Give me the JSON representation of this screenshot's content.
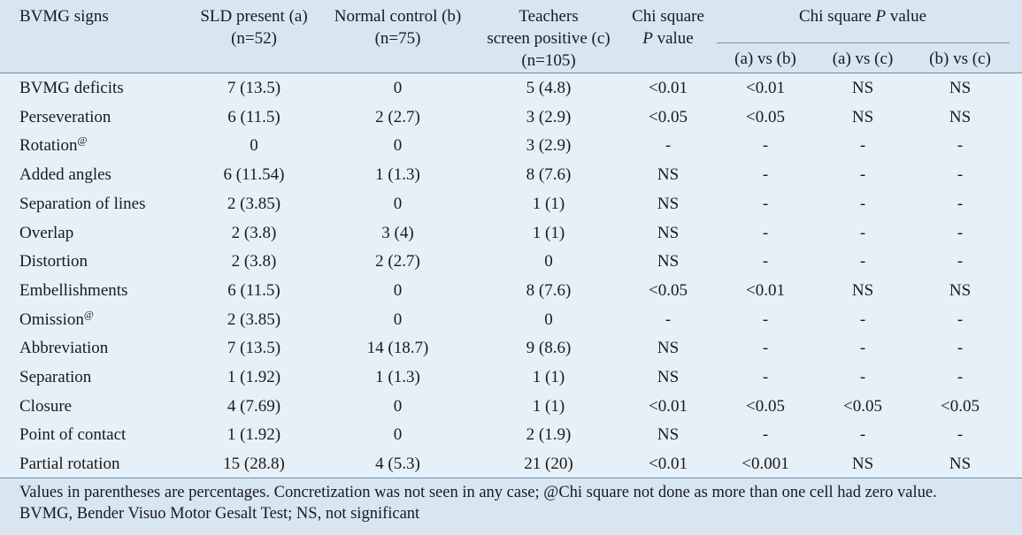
{
  "table": {
    "headers": {
      "signs": "BVMG signs",
      "sld_line1": "SLD present (a)",
      "sld_line2": "(n=52)",
      "normal_line1": "Normal control (b)",
      "normal_line2": "(n=75)",
      "teachers_line1": "Teachers",
      "teachers_line2": "screen positive (c)",
      "teachers_line3": "(n=105)",
      "chi_line1": "Chi square",
      "chi_line2_italic": "P",
      "chi_line2_rest": " value",
      "chip_group_pre": "Chi square ",
      "chip_group_italic": "P",
      "chip_group_post": " value",
      "ab": "(a) vs (b)",
      "ac": "(a) vs (c)",
      "bc": "(b) vs (c)"
    },
    "rows": [
      {
        "sign": "BVMG deficits",
        "sup": "",
        "a": "7 (13.5)",
        "b": "0",
        "c": "5 (4.8)",
        "chi": "<0.01",
        "ab": "<0.01",
        "ac": "NS",
        "bc": "NS"
      },
      {
        "sign": "Perseveration",
        "sup": "",
        "a": "6 (11.5)",
        "b": "2 (2.7)",
        "c": "3 (2.9)",
        "chi": "<0.05",
        "ab": "<0.05",
        "ac": "NS",
        "bc": "NS"
      },
      {
        "sign": "Rotation",
        "sup": "@",
        "a": "0",
        "b": "0",
        "c": "3 (2.9)",
        "chi": "-",
        "ab": "-",
        "ac": "-",
        "bc": "-"
      },
      {
        "sign": "Added angles",
        "sup": "",
        "a": "6 (11.54)",
        "b": "1 (1.3)",
        "c": "8 (7.6)",
        "chi": "NS",
        "ab": "-",
        "ac": "-",
        "bc": "-"
      },
      {
        "sign": "Separation of lines",
        "sup": "",
        "a": "2 (3.85)",
        "b": "0",
        "c": "1 (1)",
        "chi": "NS",
        "ab": "-",
        "ac": "-",
        "bc": "-"
      },
      {
        "sign": "Overlap",
        "sup": "",
        "a": "2 (3.8)",
        "b": "3 (4)",
        "c": "1 (1)",
        "chi": "NS",
        "ab": "-",
        "ac": "-",
        "bc": "-"
      },
      {
        "sign": "Distortion",
        "sup": "",
        "a": "2 (3.8)",
        "b": "2 (2.7)",
        "c": "0",
        "chi": "NS",
        "ab": "-",
        "ac": "-",
        "bc": "-"
      },
      {
        "sign": "Embellishments",
        "sup": "",
        "a": "6 (11.5)",
        "b": "0",
        "c": "8 (7.6)",
        "chi": "<0.05",
        "ab": "<0.01",
        "ac": "NS",
        "bc": "NS"
      },
      {
        "sign": "Omission",
        "sup": "@",
        "a": "2 (3.85)",
        "b": "0",
        "c": "0",
        "chi": "-",
        "ab": "-",
        "ac": "-",
        "bc": "-"
      },
      {
        "sign": "Abbreviation",
        "sup": "",
        "a": "7 (13.5)",
        "b": "14 (18.7)",
        "c": "9 (8.6)",
        "chi": "NS",
        "ab": "-",
        "ac": "-",
        "bc": "-"
      },
      {
        "sign": "Separation",
        "sup": "",
        "a": "1 (1.92)",
        "b": "1 (1.3)",
        "c": "1 (1)",
        "chi": "NS",
        "ab": "-",
        "ac": "-",
        "bc": "-"
      },
      {
        "sign": "Closure",
        "sup": "",
        "a": "4 (7.69)",
        "b": "0",
        "c": "1 (1)",
        "chi": "<0.01",
        "ab": "<0.05",
        "ac": "<0.05",
        "bc": "<0.05"
      },
      {
        "sign": "Point of contact",
        "sup": "",
        "a": "1 (1.92)",
        "b": "0",
        "c": "2 (1.9)",
        "chi": "NS",
        "ab": "-",
        "ac": "-",
        "bc": "-"
      },
      {
        "sign": "Partial rotation",
        "sup": "",
        "a": "15 (28.8)",
        "b": "4 (5.3)",
        "c": "21 (20)",
        "chi": "<0.01",
        "ab": "<0.001",
        "ac": "NS",
        "bc": "NS"
      }
    ]
  },
  "footnotes": {
    "line1": "Values in parentheses are percentages. Concretization was not seen in any case; @Chi square not done as more than one cell had zero value.",
    "line2": "BVMG, Bender Visuo Motor Gesalt Test; NS, not significant"
  },
  "colors": {
    "background": "#e6f0f8",
    "header_band": "#d8e6f2",
    "rule": "#6f8ea8"
  }
}
